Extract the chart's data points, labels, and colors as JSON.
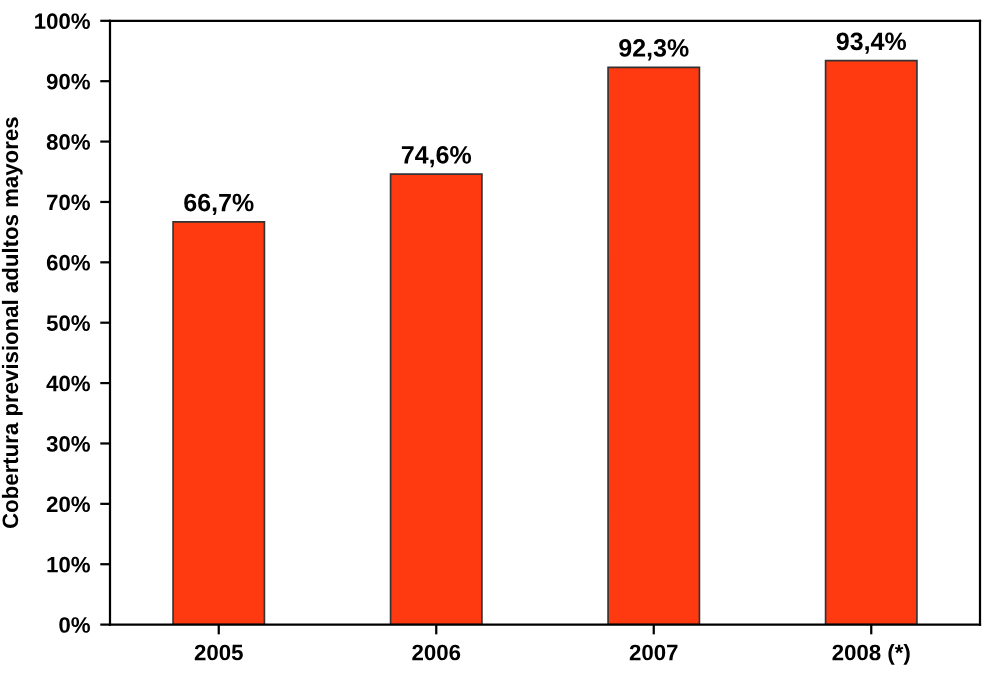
{
  "chart_data": {
    "type": "bar",
    "ylabel": "Cobertura previsional adultos mayores",
    "categories": [
      "2005",
      "2006",
      "2007",
      "2008 (*)"
    ],
    "values": [
      66.7,
      74.6,
      92.3,
      93.4
    ],
    "value_labels": [
      "66,7%",
      "74,6%",
      "92,3%",
      "93,4%"
    ],
    "color": "#ff3a10",
    "ylim": [
      0,
      100
    ],
    "yticks": [
      {
        "value": 0,
        "label": "0%"
      },
      {
        "value": 10,
        "label": "10%"
      },
      {
        "value": 20,
        "label": "20%"
      },
      {
        "value": 30,
        "label": "30%"
      },
      {
        "value": 40,
        "label": "40%"
      },
      {
        "value": 50,
        "label": "50%"
      },
      {
        "value": 60,
        "label": "60%"
      },
      {
        "value": 70,
        "label": "70%"
      },
      {
        "value": 80,
        "label": "80%"
      },
      {
        "value": 90,
        "label": "90%"
      },
      {
        "value": 100,
        "label": "100%"
      }
    ],
    "grid": false,
    "legend": false
  }
}
